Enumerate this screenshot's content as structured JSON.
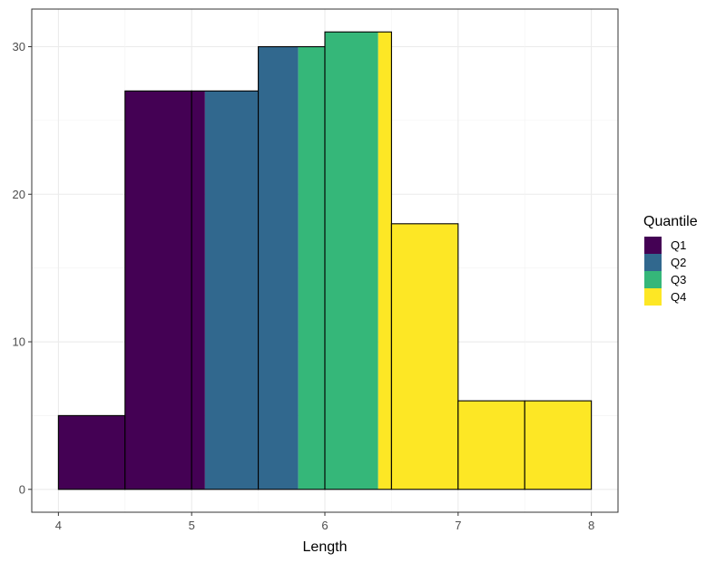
{
  "chart_data": {
    "type": "bar",
    "title": "",
    "xlabel": "Length",
    "ylabel": "",
    "xlim": [
      3.8,
      8.2
    ],
    "ylim": [
      -1.55,
      32.55
    ],
    "x_ticks": [
      4,
      5,
      6,
      7,
      8
    ],
    "x_ticks_labels": [
      "4",
      "5",
      "6",
      "7",
      "8"
    ],
    "y_ticks": [
      0,
      10,
      20,
      30
    ],
    "y_ticks_labels": [
      "0",
      "10",
      "20",
      "30"
    ],
    "grid": true,
    "legend": {
      "title": "Quantile",
      "placement": "right",
      "entries": [
        "Q1",
        "Q2",
        "Q3",
        "Q4"
      ]
    },
    "quantile_colors": {
      "Q1": "#440154",
      "Q2": "#31688E",
      "Q3": "#35B779",
      "Q4": "#FDE725"
    },
    "quantile_breaks": [
      5.1,
      5.8,
      6.4
    ],
    "bins": [
      {
        "x0": 4.0,
        "x1": 4.5,
        "count": 5
      },
      {
        "x0": 4.5,
        "x1": 5.0,
        "count": 27
      },
      {
        "x0": 5.0,
        "x1": 5.5,
        "count": 27
      },
      {
        "x0": 5.5,
        "x1": 6.0,
        "count": 30
      },
      {
        "x0": 6.0,
        "x1": 6.5,
        "count": 31
      },
      {
        "x0": 6.5,
        "x1": 7.0,
        "count": 18
      },
      {
        "x0": 7.0,
        "x1": 7.5,
        "count": 6
      },
      {
        "x0": 7.5,
        "x1": 8.0,
        "count": 6
      }
    ]
  }
}
